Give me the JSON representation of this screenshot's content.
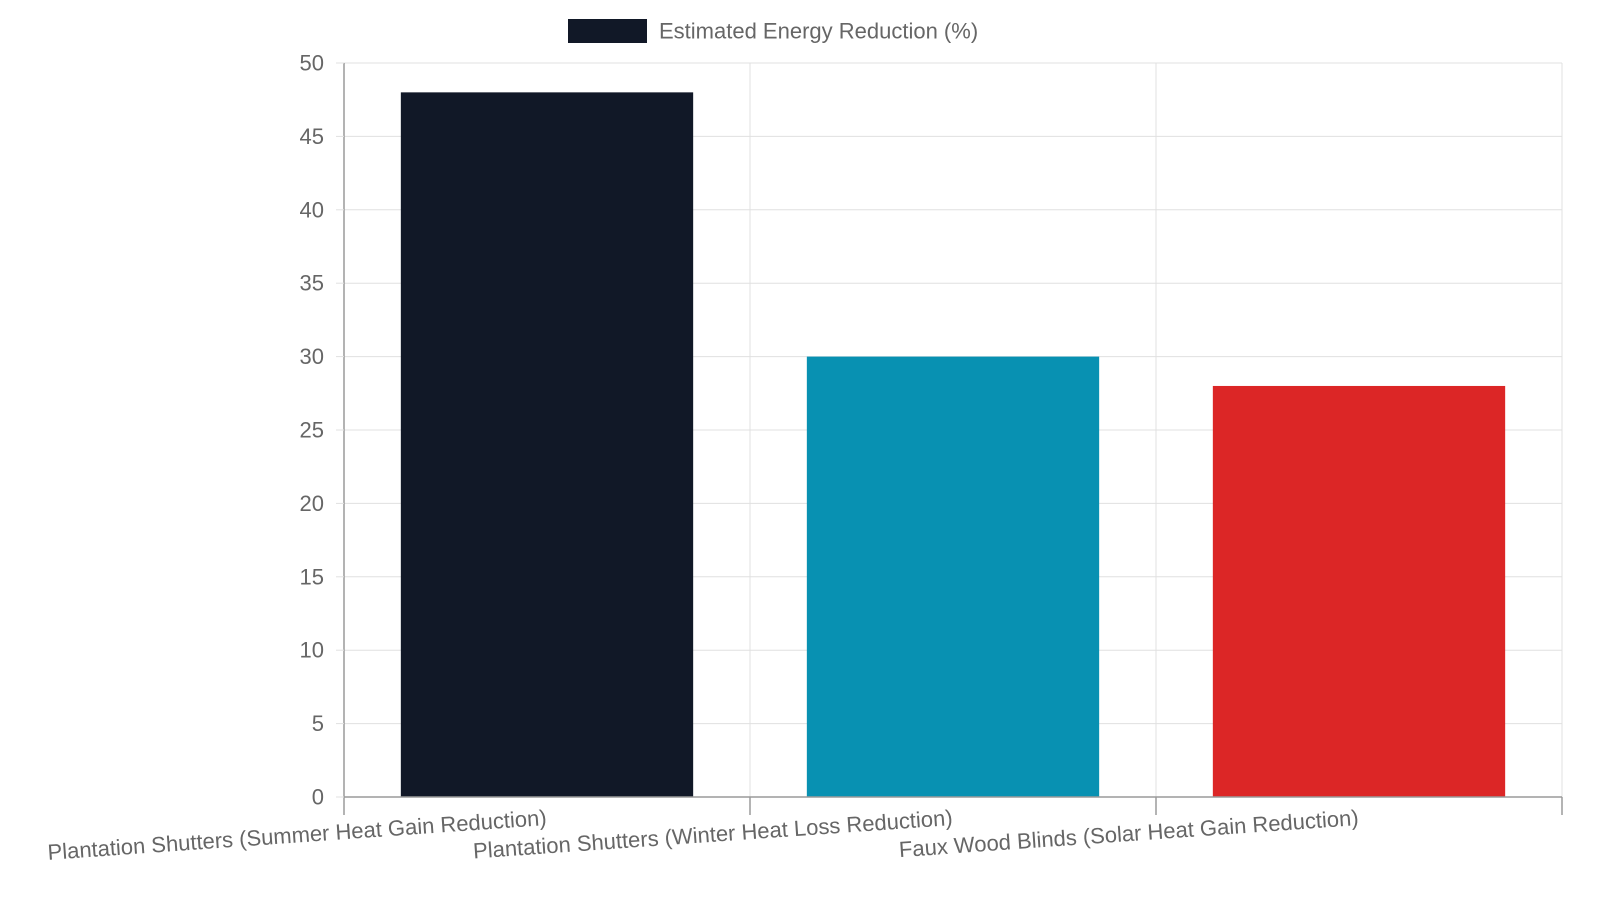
{
  "chart_data": {
    "type": "bar",
    "title": "",
    "xlabel": "",
    "ylabel": "",
    "categories": [
      "Plantation Shutters (Summer Heat Gain Reduction)",
      "Plantation Shutters (Winter Heat Loss Reduction)",
      "Faux Wood Blinds (Solar Heat Gain Reduction)"
    ],
    "series": [
      {
        "name": "Estimated Energy Reduction (%)",
        "values": [
          48,
          30,
          28
        ],
        "colors": [
          "#111827",
          "#0891b2",
          "#dc2626"
        ]
      }
    ],
    "ylim": [
      0,
      50
    ],
    "yticks": [
      0,
      5,
      10,
      15,
      20,
      25,
      30,
      35,
      40,
      45,
      50
    ],
    "grid": true,
    "legend_position": "top-center",
    "colors": {
      "grid": "#e0e0e0",
      "axis": "#9a9a9a",
      "tick_text": "#666666",
      "legend_text": "#666666"
    }
  }
}
